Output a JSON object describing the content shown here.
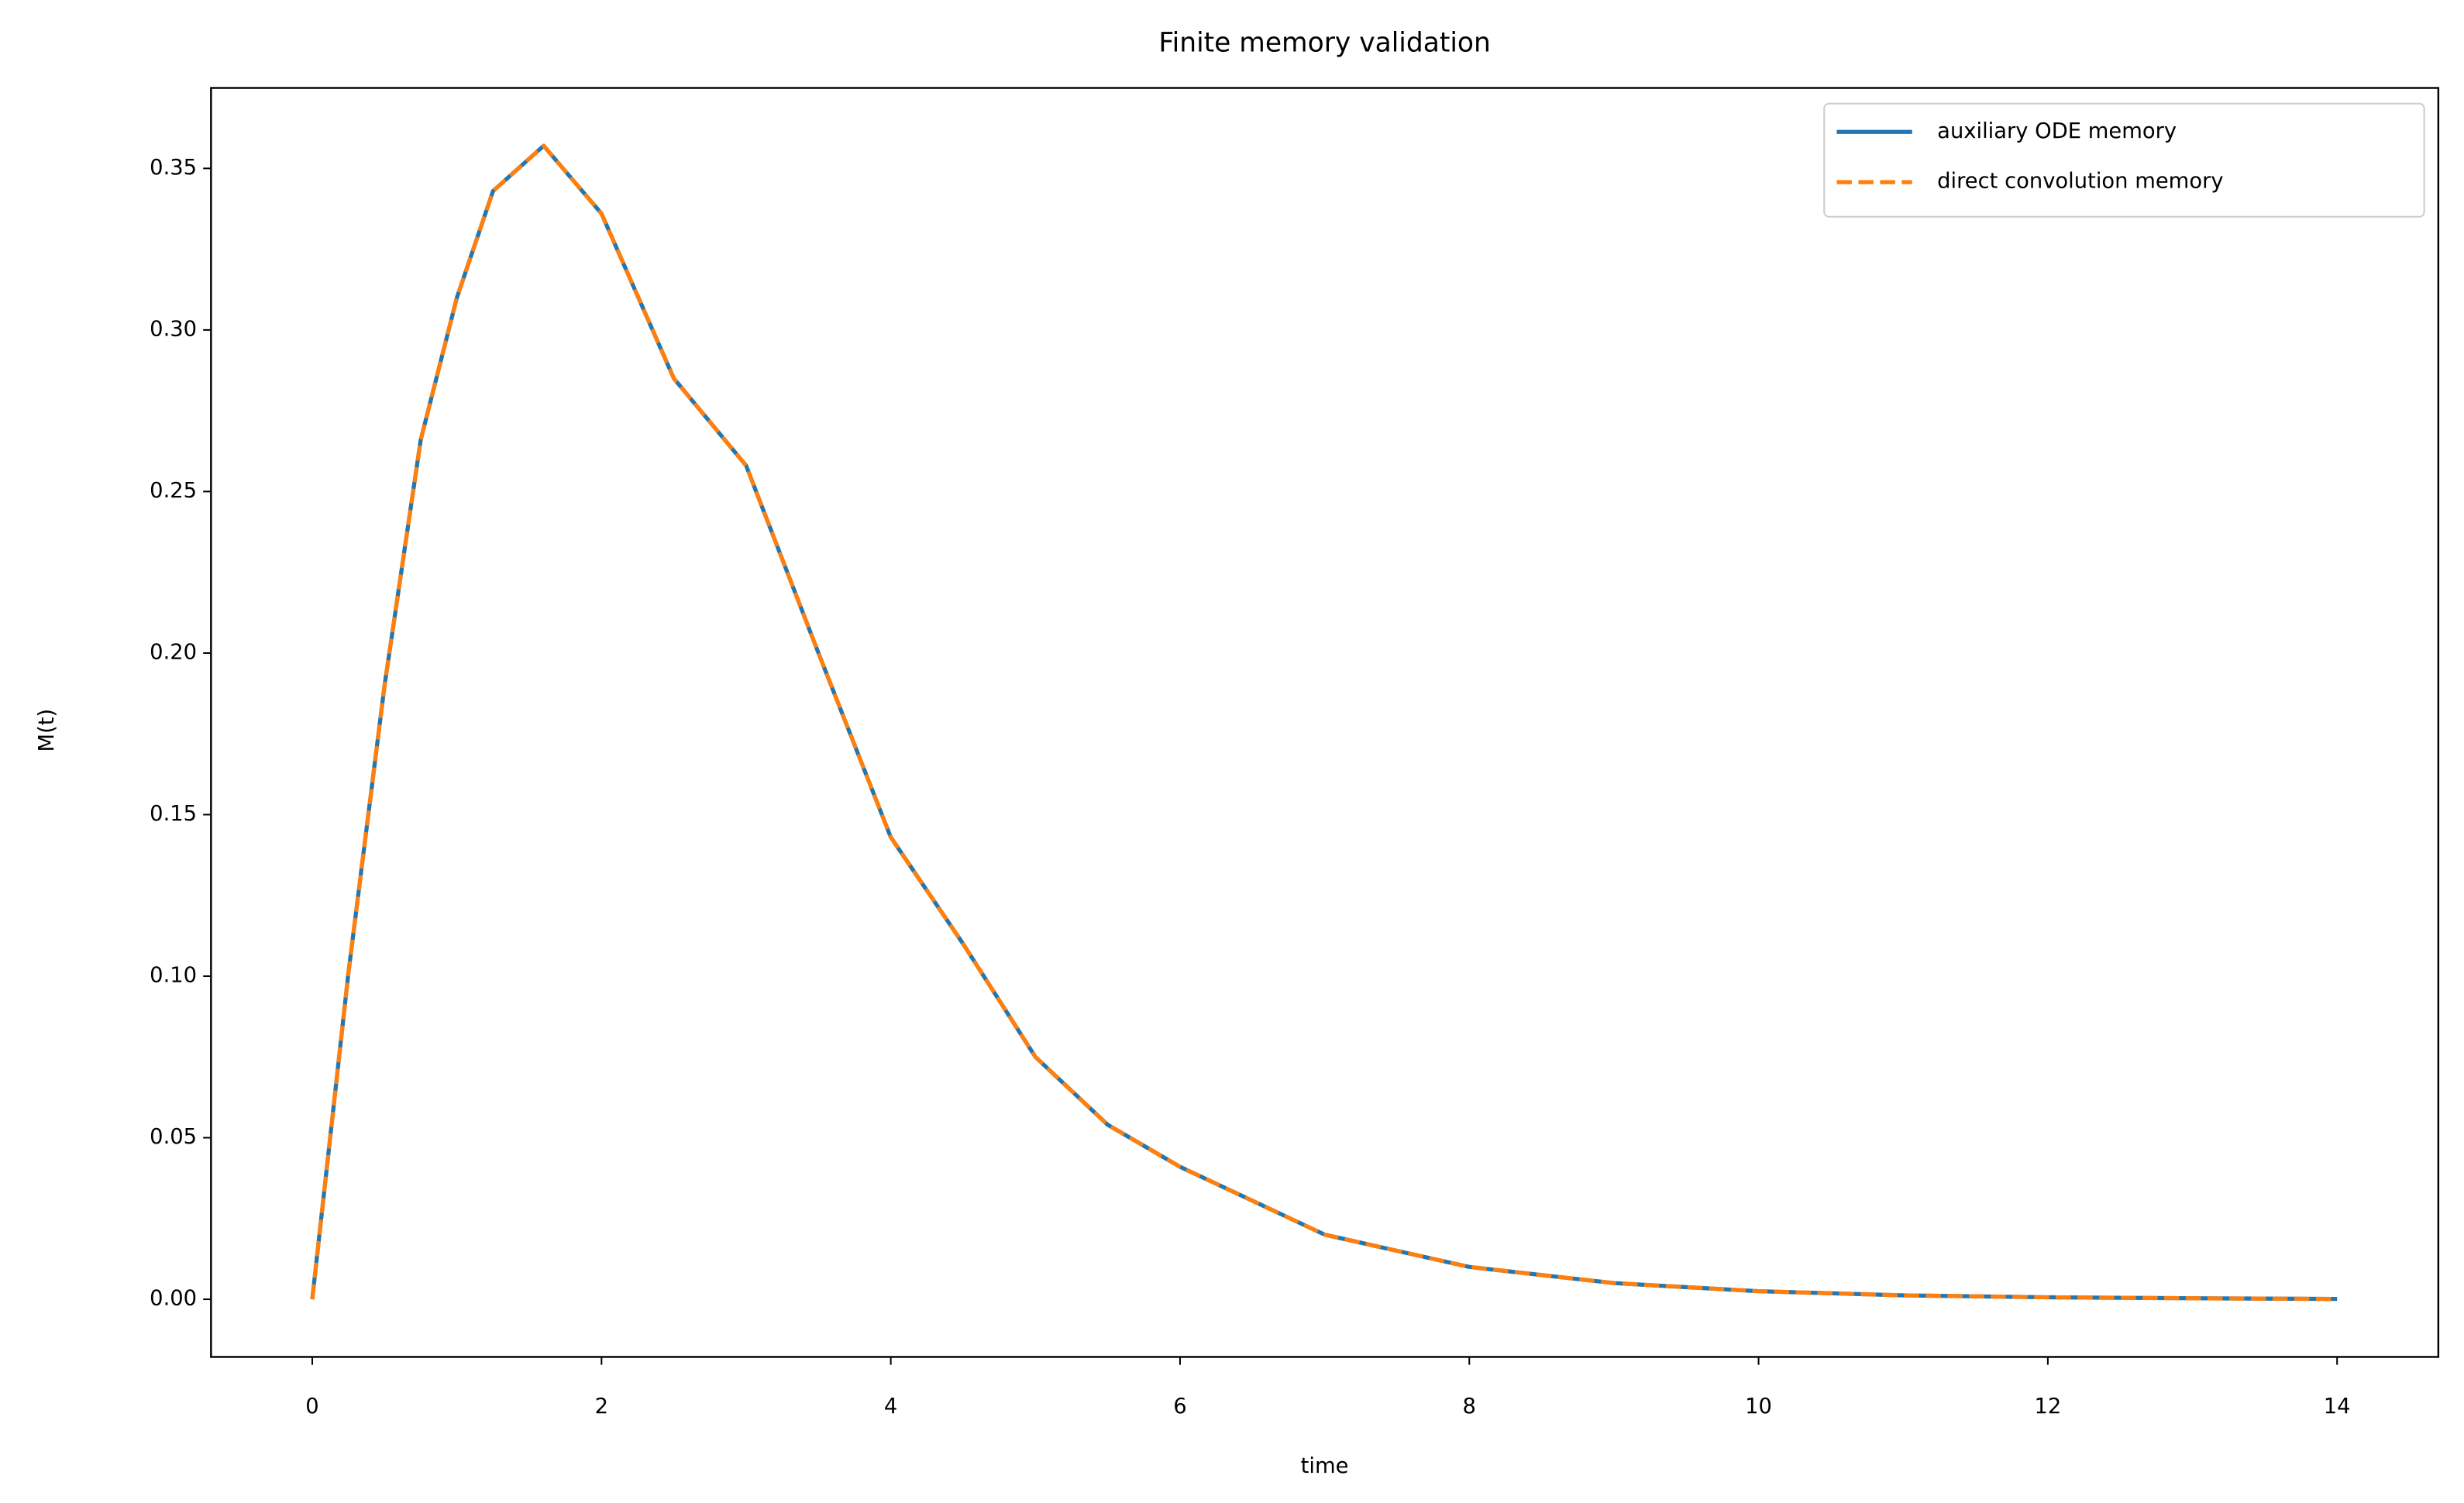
{
  "chart_data": {
    "type": "line",
    "title": "Finite memory validation",
    "xlabel": "time",
    "ylabel": "M(t)",
    "x": [
      0,
      0.25,
      0.5,
      0.75,
      1,
      1.25,
      1.6,
      2,
      2.5,
      3,
      3.5,
      4,
      4.5,
      5,
      5.5,
      6,
      7,
      8,
      9,
      10,
      11,
      12,
      13,
      14
    ],
    "series": [
      {
        "name": "auxiliary ODE memory",
        "color": "#1f77b4",
        "dash": "solid",
        "values": [
          0,
          0.101,
          0.19,
          0.266,
          0.31,
          0.343,
          0.357,
          0.336,
          0.285,
          0.258,
          0.2,
          0.143,
          0.11,
          0.075,
          0.054,
          0.041,
          0.02,
          0.01,
          0.005,
          0.0025,
          0.0012,
          0.0006,
          0.0003,
          0.0001
        ]
      },
      {
        "name": "direct convolution memory",
        "color": "#ff7f0e",
        "dash": "dashed",
        "values": [
          0,
          0.101,
          0.19,
          0.266,
          0.31,
          0.343,
          0.357,
          0.336,
          0.285,
          0.258,
          0.2,
          0.143,
          0.11,
          0.075,
          0.054,
          0.041,
          0.02,
          0.01,
          0.005,
          0.0025,
          0.0012,
          0.0006,
          0.0003,
          0.0001
        ]
      }
    ],
    "xlim": [
      -0.7,
      14.7
    ],
    "ylim": [
      -0.01785,
      0.3749
    ],
    "xticks": [
      0,
      2,
      4,
      6,
      8,
      10,
      12,
      14
    ],
    "yticks": [
      {
        "value": 0,
        "label": "0.00"
      },
      {
        "value": 0.05,
        "label": "0.05"
      },
      {
        "value": 0.1,
        "label": "0.10"
      },
      {
        "value": 0.15,
        "label": "0.15"
      },
      {
        "value": 0.2,
        "label": "0.20"
      },
      {
        "value": 0.25,
        "label": "0.25"
      },
      {
        "value": 0.3,
        "label": "0.30"
      },
      {
        "value": 0.35,
        "label": "0.35"
      }
    ],
    "legend": "upper right",
    "grid": false
  }
}
